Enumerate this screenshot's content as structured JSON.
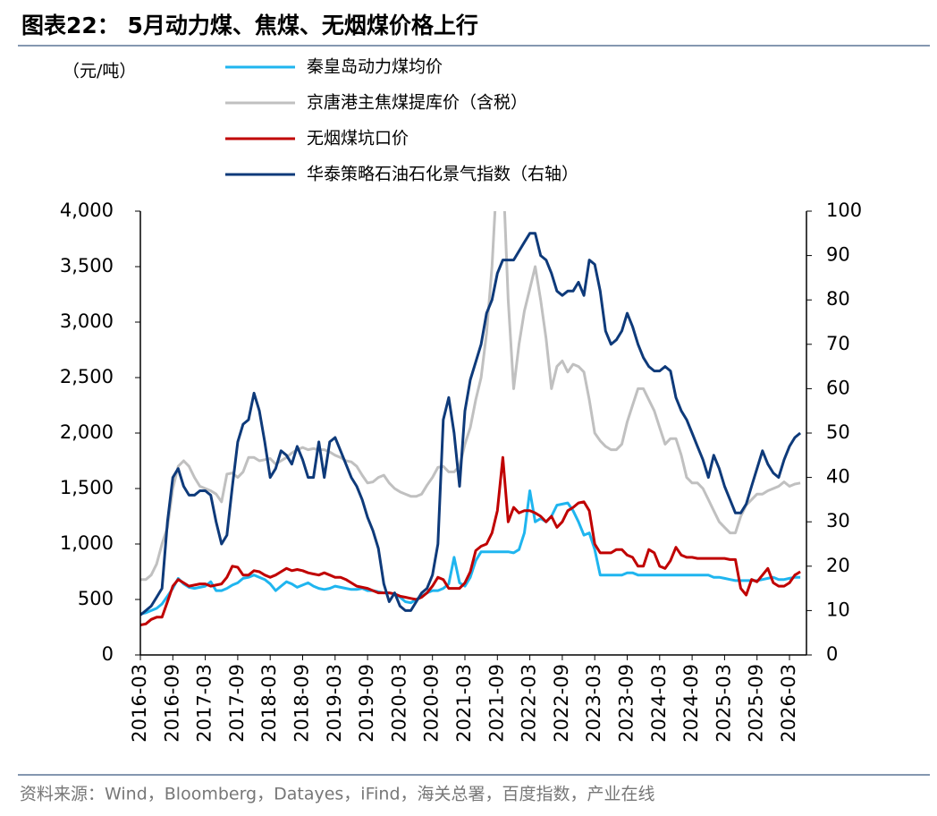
{
  "chart_data": {
    "type": "line",
    "title": "图表22：  5月动力煤、焦煤、无烟煤价格上行",
    "y_label": "（元/吨）",
    "source": "资料来源：Wind，Bloomberg，Datayes，iFind，海关总署，百度指数，产业在线",
    "categories": [
      "2016-03",
      null,
      null,
      null,
      null,
      null,
      "2016-09",
      null,
      null,
      null,
      null,
      null,
      "2017-03",
      null,
      null,
      null,
      null,
      null,
      "2017-09",
      null,
      null,
      null,
      null,
      null,
      "2018-03",
      null,
      null,
      null,
      null,
      null,
      "2018-09",
      null,
      null,
      null,
      null,
      null,
      "2019-03",
      null,
      null,
      null,
      null,
      null,
      "2019-09",
      null,
      null,
      null,
      null,
      null,
      "2020-03",
      null,
      null,
      null,
      null,
      null,
      "2020-09",
      null,
      null,
      null,
      null,
      null,
      "2021-03",
      null,
      null,
      null,
      null,
      null,
      "2021-09",
      null,
      null,
      null,
      null,
      null,
      "2022-03",
      null,
      null,
      null,
      null,
      null,
      "2022-09",
      null,
      null,
      null,
      null,
      null,
      "2023-03",
      null,
      null,
      null,
      null,
      null,
      "2023-09",
      null,
      null,
      null,
      null,
      null,
      "2024-03",
      null,
      null,
      null,
      null,
      null,
      "2024-09",
      null,
      null,
      null,
      null,
      null,
      "2025-03",
      null,
      null,
      null,
      null,
      null,
      "2025-09",
      null,
      null,
      null,
      null,
      null,
      "2026-03",
      null,
      null
    ],
    "series": [
      {
        "name": "秦皇岛动力煤均价",
        "color": "#1fb5ef",
        "values": [
          370,
          380,
          400,
          420,
          460,
          530,
          600,
          690,
          640,
          610,
          600,
          610,
          620,
          660,
          580,
          580,
          600,
          630,
          650,
          690,
          700,
          720,
          700,
          680,
          640,
          580,
          620,
          660,
          640,
          610,
          630,
          650,
          620,
          600,
          590,
          600,
          620,
          610,
          600,
          590,
          590,
          600,
          580,
          580,
          570,
          560,
          560,
          550,
          520,
          480,
          470,
          500,
          530,
          560,
          580,
          580,
          600,
          640,
          880,
          650,
          620,
          700,
          850,
          930,
          930,
          930,
          930,
          930,
          930,
          920,
          950,
          1100,
          1480,
          1200,
          1230,
          1200,
          1250,
          1350,
          1360,
          1370,
          1300,
          1200,
          1080,
          1100,
          950,
          720,
          720,
          720,
          720,
          720,
          740,
          740,
          720,
          720,
          720,
          720,
          720,
          720,
          720,
          720,
          720,
          720,
          720,
          720,
          720,
          720,
          700,
          700,
          690,
          680,
          670,
          670,
          670,
          670,
          670,
          680,
          690,
          700,
          680,
          680,
          690,
          700,
          700
        ]
      },
      {
        "name": "京唐港主焦煤提库价（含税）",
        "color": "#c0c0c0",
        "values": [
          680,
          680,
          720,
          820,
          1000,
          1150,
          1500,
          1700,
          1750,
          1700,
          1600,
          1520,
          1500,
          1480,
          1450,
          1380,
          1630,
          1640,
          1600,
          1650,
          1780,
          1780,
          1750,
          1760,
          1770,
          1720,
          1750,
          1780,
          1820,
          1850,
          1870,
          1850,
          1860,
          1850,
          1850,
          1830,
          1800,
          1780,
          1750,
          1740,
          1700,
          1620,
          1550,
          1560,
          1600,
          1620,
          1550,
          1500,
          1470,
          1450,
          1430,
          1430,
          1450,
          1530,
          1600,
          1690,
          1700,
          1650,
          1650,
          1700,
          1900,
          2050,
          2300,
          2500,
          2900,
          3500,
          4400,
          4400,
          3200,
          2400,
          2800,
          3100,
          3300,
          3500,
          3200,
          2850,
          2400,
          2600,
          2650,
          2550,
          2620,
          2600,
          2550,
          2300,
          2000,
          1930,
          1880,
          1850,
          1850,
          1900,
          2100,
          2250,
          2400,
          2400,
          2300,
          2200,
          2050,
          1900,
          1950,
          1950,
          1800,
          1600,
          1550,
          1550,
          1500,
          1400,
          1300,
          1200,
          1150,
          1100,
          1100,
          1250,
          1350,
          1400,
          1450,
          1450,
          1480,
          1500,
          1520,
          1560,
          1520,
          1540,
          1550
        ]
      },
      {
        "name": "无烟煤坑口价",
        "color": "#c00000",
        "values": [
          270,
          280,
          320,
          340,
          340,
          480,
          620,
          680,
          650,
          620,
          630,
          640,
          640,
          620,
          630,
          640,
          700,
          800,
          790,
          720,
          720,
          760,
          750,
          720,
          700,
          720,
          750,
          780,
          760,
          770,
          760,
          740,
          730,
          720,
          740,
          720,
          700,
          700,
          680,
          650,
          620,
          610,
          600,
          580,
          560,
          560,
          560,
          550,
          530,
          520,
          510,
          500,
          520,
          560,
          620,
          700,
          680,
          600,
          600,
          600,
          650,
          750,
          940,
          980,
          1000,
          1100,
          1300,
          1780,
          1200,
          1330,
          1280,
          1300,
          1300,
          1280,
          1250,
          1200,
          1250,
          1150,
          1200,
          1300,
          1330,
          1370,
          1380,
          1300,
          1000,
          920,
          920,
          920,
          950,
          950,
          900,
          880,
          800,
          800,
          950,
          920,
          800,
          780,
          850,
          970,
          900,
          880,
          880,
          870,
          870,
          870,
          870,
          870,
          870,
          860,
          860,
          600,
          540,
          680,
          660,
          720,
          780,
          650,
          620,
          620,
          650,
          720,
          750
        ]
      },
      {
        "name": "华泰策略石油石化景气指数（右轴）",
        "color": "#0e3a7a",
        "axis": "y2",
        "values": [
          9,
          10,
          11,
          13,
          15,
          30,
          40,
          42,
          38,
          36,
          36,
          37,
          37,
          36,
          30,
          25,
          27,
          38,
          48,
          52,
          53,
          59,
          55,
          48,
          40,
          42,
          46,
          45,
          43,
          47,
          44,
          40,
          40,
          48,
          40,
          48,
          49,
          46,
          43,
          40,
          38,
          35,
          31,
          28,
          24,
          16,
          12,
          14,
          11,
          10,
          10,
          12,
          14,
          15,
          18,
          25,
          53,
          58,
          50,
          38,
          55,
          62,
          66,
          70,
          77,
          80,
          86,
          89,
          89,
          89,
          91,
          93,
          95,
          95,
          90,
          89,
          86,
          82,
          81,
          82,
          82,
          84,
          81,
          89,
          88,
          82,
          73,
          70,
          71,
          73,
          77,
          74,
          70,
          67,
          65,
          64,
          64,
          65,
          64,
          58,
          55,
          53,
          50,
          47,
          44,
          40,
          45,
          42,
          38,
          35,
          32,
          32,
          34,
          38,
          42,
          46,
          43,
          41,
          40,
          44,
          47,
          49,
          50
        ]
      }
    ],
    "ylim": [
      0,
      4000
    ],
    "yticks": [
      0,
      500,
      {
        "value": 1000,
        "label": "1,000"
      },
      {
        "value": 1500,
        "label": "1,500"
      },
      {
        "value": 2000,
        "label": "2,000"
      },
      {
        "value": 2500,
        "label": "2,500"
      },
      {
        "value": 3000,
        "label": "3,000"
      },
      {
        "value": 3500,
        "label": "3,500"
      },
      {
        "value": 4000,
        "label": "4,000"
      }
    ],
    "y2lim": [
      0,
      100
    ],
    "y2ticks": [
      0,
      10,
      20,
      30,
      40,
      50,
      60,
      70,
      80,
      90,
      100
    ]
  }
}
